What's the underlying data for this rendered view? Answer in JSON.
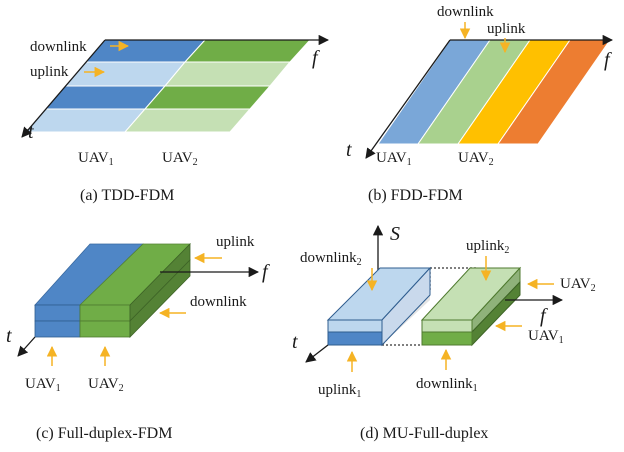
{
  "colors": {
    "dark_blue": "#4f86c6",
    "light_blue": "#bdd7ee",
    "dark_green": "#70ad47",
    "light_green": "#c5e0b4",
    "yellow": "#ffc000",
    "orange": "#ed7d31",
    "arrow_orange": "#f5b324"
  },
  "panel_a": {
    "caption": "(a) TDD-FDM",
    "downlink": "downlink",
    "uplink": "uplink",
    "axis_f": "f",
    "axis_t": "t",
    "uav1": "UAV",
    "uav1_sub": "1",
    "uav2": "UAV",
    "uav2_sub": "2"
  },
  "panel_b": {
    "caption": "(b) FDD-FDM",
    "downlink": "downlink",
    "uplink": "uplink",
    "axis_f": "f",
    "axis_t": "t",
    "uav1": "UAV",
    "uav1_sub": "1",
    "uav2": "UAV",
    "uav2_sub": "2"
  },
  "panel_c": {
    "caption": "(c) Full-duplex-FDM",
    "uplink": "uplink",
    "downlink": "downlink",
    "axis_f": "f",
    "axis_t": "t",
    "uav1": "UAV",
    "uav1_sub": "1",
    "uav2": "UAV",
    "uav2_sub": "2"
  },
  "panel_d": {
    "caption": "(d) MU-Full-duplex",
    "downlink2": "downlink",
    "downlink2_sub": "2",
    "uplink2": "uplink",
    "uplink2_sub": "2",
    "uav2": "UAV",
    "uav2_sub": "2",
    "uav1": "UAV",
    "uav1_sub": "1",
    "uplink1": "uplink",
    "uplink1_sub": "1",
    "downlink1": "downlink",
    "downlink1_sub": "1",
    "axis_s": "S",
    "axis_f": "f",
    "axis_t": "t"
  }
}
